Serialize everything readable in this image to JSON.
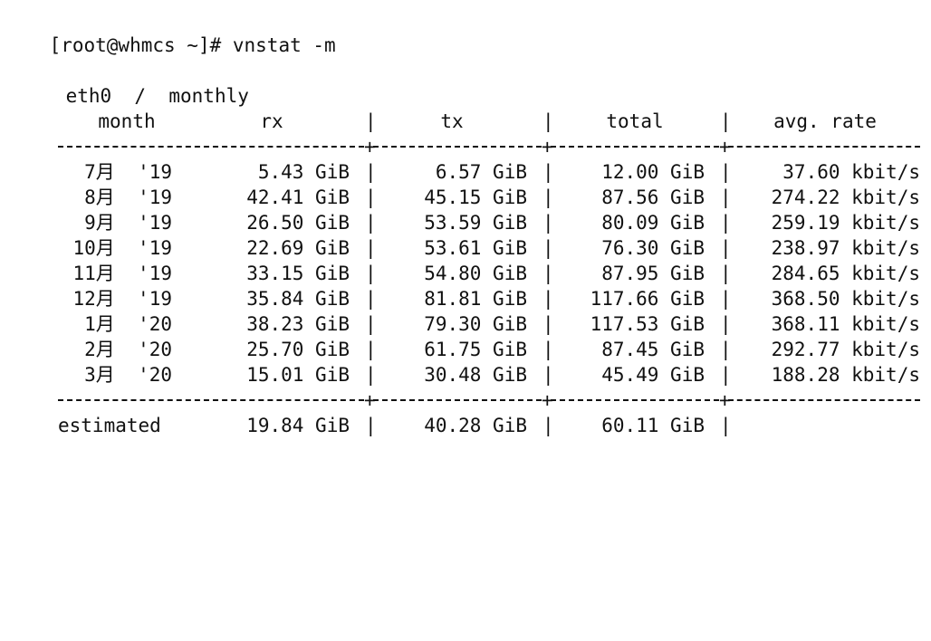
{
  "prompt": {
    "bracket": "[",
    "text": "[root@whmcs ~]# vnstat -m"
  },
  "subtitle": "eth0  /  monthly",
  "headers": {
    "month": "month",
    "rx": "rx",
    "tx": "tx",
    "total": "total",
    "rate": "avg. rate"
  },
  "separator_char": "|",
  "plus_char": "+",
  "rows": [
    {
      "month": "7月  '19",
      "rx": "5.43 GiB",
      "tx": "6.57 GiB",
      "total": "12.00 GiB",
      "rate": "37.60 kbit/s"
    },
    {
      "month": "8月  '19",
      "rx": "42.41 GiB",
      "tx": "45.15 GiB",
      "total": "87.56 GiB",
      "rate": "274.22 kbit/s"
    },
    {
      "month": "9月  '19",
      "rx": "26.50 GiB",
      "tx": "53.59 GiB",
      "total": "80.09 GiB",
      "rate": "259.19 kbit/s"
    },
    {
      "month": "10月  '19",
      "rx": "22.69 GiB",
      "tx": "53.61 GiB",
      "total": "76.30 GiB",
      "rate": "238.97 kbit/s"
    },
    {
      "month": "11月  '19",
      "rx": "33.15 GiB",
      "tx": "54.80 GiB",
      "total": "87.95 GiB",
      "rate": "284.65 kbit/s"
    },
    {
      "month": "12月  '19",
      "rx": "35.84 GiB",
      "tx": "81.81 GiB",
      "total": "117.66 GiB",
      "rate": "368.50 kbit/s"
    },
    {
      "month": "1月  '20",
      "rx": "38.23 GiB",
      "tx": "79.30 GiB",
      "total": "117.53 GiB",
      "rate": "368.11 kbit/s"
    },
    {
      "month": "2月  '20",
      "rx": "25.70 GiB",
      "tx": "61.75 GiB",
      "total": "87.45 GiB",
      "rate": "292.77 kbit/s"
    },
    {
      "month": "3月  '20",
      "rx": "15.01 GiB",
      "tx": "30.48 GiB",
      "total": "45.49 GiB",
      "rate": "188.28 kbit/s"
    }
  ],
  "estimated": {
    "label": "estimated",
    "rx": "19.84 GiB",
    "tx": "40.28 GiB",
    "total": "60.11 GiB"
  }
}
